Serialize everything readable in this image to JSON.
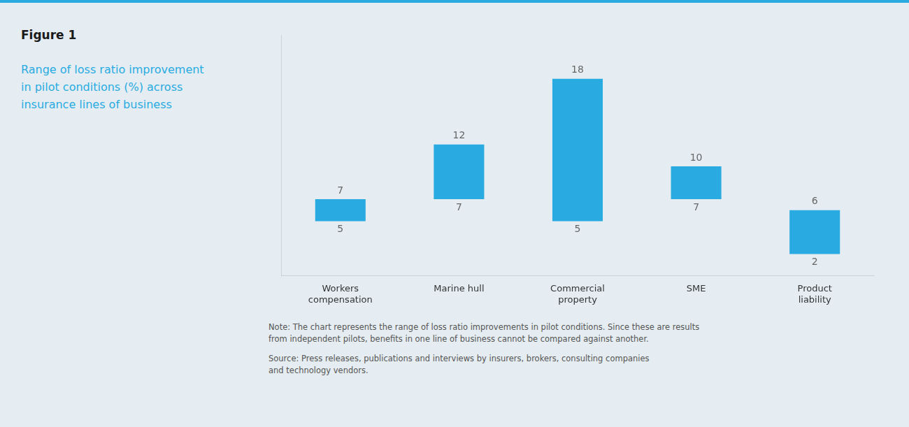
{
  "chart_data": {
    "type": "bar",
    "title": "Figure 1",
    "subtitle": "Range of loss ratio improvement\nin pilot conditions (%) across\ninsurance lines of business",
    "annotations": [
      "Note: The chart represents the range of loss ratio improvements in pilot conditions. Since these are results\nfrom independent pilots, benefits in one line of business cannot be compared against another.",
      "Source: Press releases, publications and interviews by insurers, brokers, consulting companies\nand technology vendors."
    ],
    "categories": [
      "Workers\ncompensation",
      "Marine hull",
      "Commercial\nproperty",
      "SME",
      "Product\nliability"
    ],
    "low": [
      5,
      7,
      5,
      7,
      2
    ],
    "high": [
      7,
      12,
      18,
      10,
      6
    ],
    "color": "#29ABE2",
    "ylim": [
      0,
      22
    ],
    "grid": false,
    "legend": false,
    "data_labels": true,
    "tick_labels": "x"
  }
}
